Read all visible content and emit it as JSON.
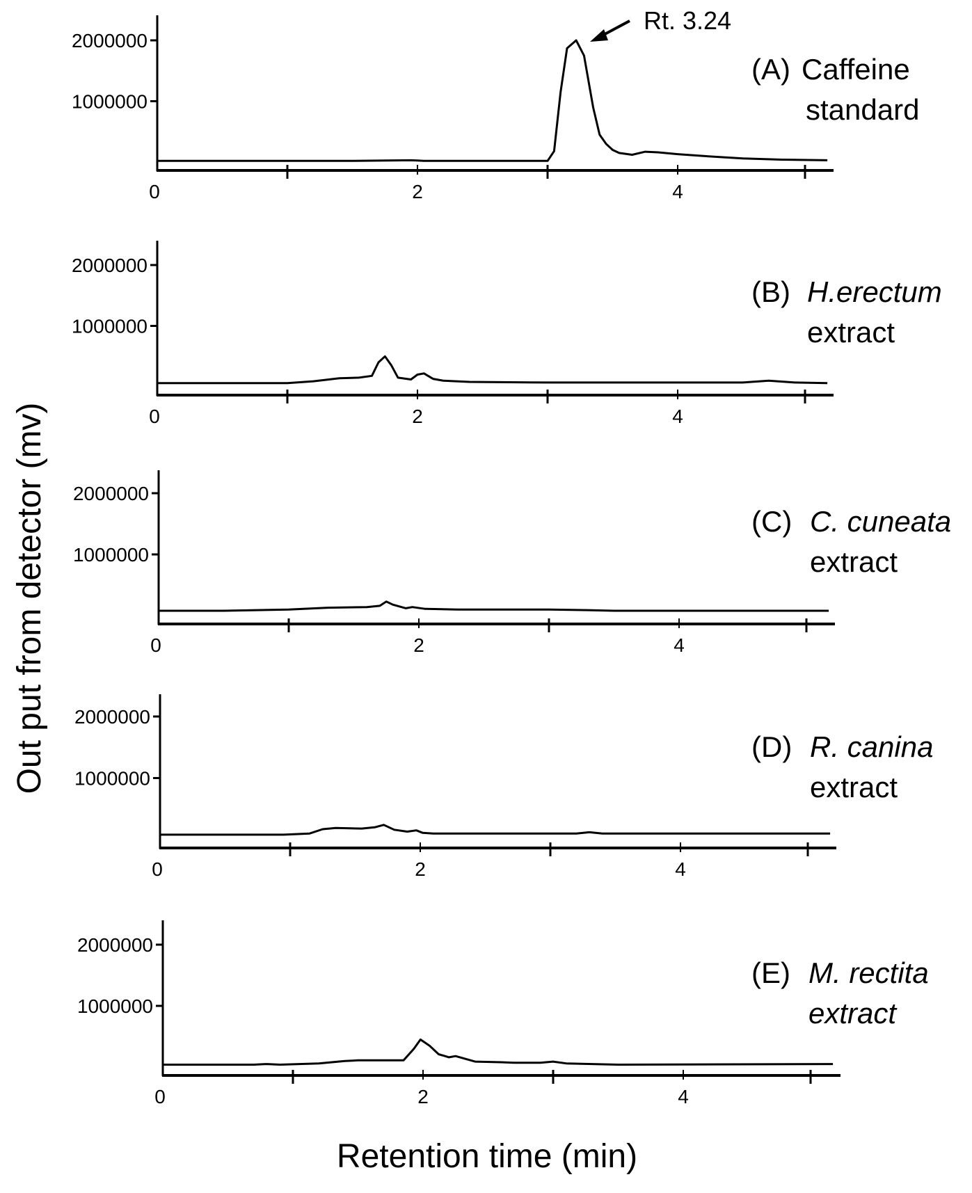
{
  "figure": {
    "ylabel": "Out put from detector (mv)",
    "xlabel": "Retention time (min)"
  },
  "chart_data": [
    {
      "type": "line",
      "panel": "A",
      "label_prefix": "(A)",
      "label_line1": "Caffeine",
      "label_line2": "standard",
      "label_italic": false,
      "annotation": "Rt. 3.24",
      "xlim": [
        0,
        5.15
      ],
      "ylim": [
        0,
        2000000
      ],
      "x_tick_labels": [
        "0",
        "2",
        "4"
      ],
      "y_tick_labels": [
        "2000000",
        "1000000"
      ],
      "series": [
        {
          "x": [
            0,
            1.5,
            1.95,
            2.0,
            2.05,
            3.0,
            3.05,
            3.1,
            3.15,
            3.22,
            3.28,
            3.35,
            3.4,
            3.45,
            3.5,
            3.55,
            3.65,
            3.75,
            3.85,
            4.0,
            4.2,
            4.5,
            4.8,
            5.15
          ],
          "y": [
            20000,
            20000,
            30000,
            25000,
            20000,
            20000,
            180000,
            1150000,
            1870000,
            2000000,
            1750000,
            900000,
            450000,
            300000,
            200000,
            150000,
            120000,
            170000,
            160000,
            130000,
            100000,
            60000,
            40000,
            30000
          ]
        }
      ]
    },
    {
      "type": "line",
      "panel": "B",
      "label_prefix": "(B)",
      "label_line1": "H.erectum",
      "label_line2": "extract",
      "label_italic": false,
      "xlim": [
        0,
        5.15
      ],
      "ylim": [
        0,
        2000000
      ],
      "x_tick_labels": [
        "0",
        "2",
        "4"
      ],
      "y_tick_labels": [
        "2000000",
        "1000000"
      ],
      "series": [
        {
          "x": [
            0,
            1.0,
            1.2,
            1.4,
            1.55,
            1.65,
            1.7,
            1.75,
            1.8,
            1.85,
            1.95,
            2.0,
            2.05,
            2.12,
            2.2,
            2.4,
            3.0,
            4.5,
            4.7,
            4.9,
            5.15
          ],
          "y": [
            60000,
            60000,
            90000,
            140000,
            150000,
            180000,
            400000,
            500000,
            350000,
            150000,
            120000,
            200000,
            220000,
            130000,
            100000,
            80000,
            70000,
            70000,
            100000,
            70000,
            60000
          ]
        }
      ]
    },
    {
      "type": "line",
      "panel": "C",
      "label_prefix": "(C)",
      "label_line1": "C. cuneata",
      "label_line2": "extract",
      "label_italic": true,
      "xlim": [
        0,
        5.15
      ],
      "ylim": [
        0,
        2000000
      ],
      "x_tick_labels": [
        "0",
        "2",
        "4"
      ],
      "y_tick_labels": [
        "2000000",
        "1000000"
      ],
      "series": [
        {
          "x": [
            0,
            0.5,
            1.0,
            1.3,
            1.6,
            1.7,
            1.75,
            1.8,
            1.9,
            1.95,
            2.05,
            2.3,
            3.0,
            3.3,
            3.5,
            5.15
          ],
          "y": [
            80000,
            80000,
            100000,
            130000,
            140000,
            160000,
            230000,
            180000,
            120000,
            140000,
            110000,
            100000,
            100000,
            90000,
            80000,
            80000
          ]
        }
      ]
    },
    {
      "type": "line",
      "panel": "D",
      "label_prefix": "(D)",
      "label_line1": "R. canina",
      "label_line2": "extract",
      "label_italic": true,
      "xlim": [
        0,
        5.15
      ],
      "ylim": [
        0,
        2000000
      ],
      "x_tick_labels": [
        "0",
        "2",
        "4"
      ],
      "y_tick_labels": [
        "2000000",
        "1000000"
      ],
      "series": [
        {
          "x": [
            0,
            0.95,
            1.15,
            1.25,
            1.35,
            1.55,
            1.65,
            1.72,
            1.8,
            1.9,
            1.97,
            2.02,
            2.1,
            2.5,
            3.2,
            3.3,
            3.4,
            5.15
          ],
          "y": [
            80000,
            80000,
            100000,
            170000,
            190000,
            180000,
            200000,
            240000,
            160000,
            130000,
            150000,
            110000,
            100000,
            100000,
            100000,
            120000,
            100000,
            100000
          ]
        }
      ]
    },
    {
      "type": "line",
      "panel": "E",
      "label_prefix": "(E)",
      "label_line1": "M. rectita",
      "label_line2": "extract",
      "label_italic": true,
      "xlim": [
        0,
        5.15
      ],
      "ylim": [
        0,
        2000000
      ],
      "x_tick_labels": [
        "0",
        "2",
        "4"
      ],
      "y_tick_labels": [
        "2000000",
        "1000000"
      ],
      "series": [
        {
          "x": [
            0,
            0.7,
            0.8,
            0.9,
            1.2,
            1.4,
            1.5,
            1.85,
            1.93,
            1.98,
            2.05,
            2.12,
            2.2,
            2.25,
            2.3,
            2.4,
            2.6,
            2.7,
            2.9,
            3.0,
            3.1,
            3.5,
            5.15
          ],
          "y": [
            40000,
            40000,
            50000,
            40000,
            60000,
            100000,
            110000,
            110000,
            300000,
            450000,
            350000,
            210000,
            160000,
            180000,
            150000,
            90000,
            80000,
            70000,
            70000,
            90000,
            60000,
            40000,
            50000
          ]
        }
      ]
    }
  ]
}
